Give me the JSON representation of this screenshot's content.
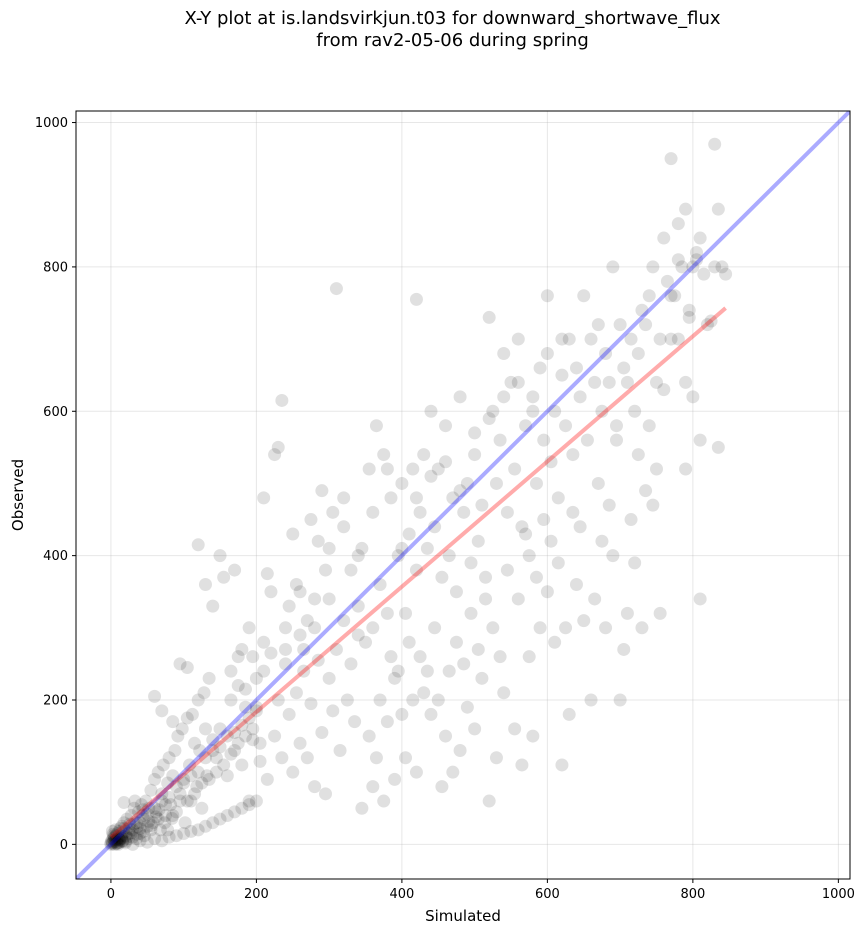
{
  "chart_data": {
    "type": "scatter",
    "title": "X-Y plot at is.landsvirkjun.t03 for downward_shortwave_flux",
    "subtitle": "from rav2-05-06 during spring",
    "xlabel": "Simulated",
    "ylabel": "Observed",
    "xlim": [
      -48,
      1016
    ],
    "ylim": [
      -48,
      1016
    ],
    "xticks": [
      0,
      200,
      400,
      600,
      800,
      1000
    ],
    "yticks": [
      0,
      200,
      400,
      600,
      800,
      1000
    ],
    "grid": true,
    "colors": {
      "points": "#000000",
      "identity_line": "#0000ff",
      "fit_line": "#ff0000"
    },
    "identity_line": {
      "x": [
        -48,
        1016
      ],
      "y": [
        -48,
        1016
      ]
    },
    "fit_line": {
      "x": [
        0,
        845
      ],
      "y": [
        10,
        743
      ]
    },
    "points": [
      [
        0,
        2
      ],
      [
        1,
        5
      ],
      [
        2,
        1
      ],
      [
        3,
        8
      ],
      [
        4,
        3
      ],
      [
        5,
        10
      ],
      [
        6,
        4
      ],
      [
        7,
        12
      ],
      [
        8,
        6
      ],
      [
        9,
        15
      ],
      [
        10,
        2
      ],
      [
        11,
        18
      ],
      [
        12,
        7
      ],
      [
        13,
        22
      ],
      [
        14,
        9
      ],
      [
        15,
        25
      ],
      [
        16,
        5
      ],
      [
        18,
        30
      ],
      [
        20,
        12
      ],
      [
        22,
        35
      ],
      [
        0,
        0
      ],
      [
        2,
        3
      ],
      [
        5,
        0
      ],
      [
        8,
        1
      ],
      [
        3,
        14
      ],
      [
        12,
        3
      ],
      [
        6,
        20
      ],
      [
        15,
        8
      ],
      [
        20,
        4
      ],
      [
        25,
        15
      ],
      [
        28,
        40
      ],
      [
        30,
        20
      ],
      [
        32,
        50
      ],
      [
        35,
        8
      ],
      [
        38,
        45
      ],
      [
        40,
        30
      ],
      [
        42,
        55
      ],
      [
        45,
        18
      ],
      [
        48,
        60
      ],
      [
        50,
        25
      ],
      [
        18,
        58
      ],
      [
        22,
        10
      ],
      [
        26,
        28
      ],
      [
        33,
        60
      ],
      [
        36,
        24
      ],
      [
        44,
        40
      ],
      [
        52,
        50
      ],
      [
        55,
        75
      ],
      [
        58,
        30
      ],
      [
        60,
        90
      ],
      [
        62,
        45
      ],
      [
        65,
        100
      ],
      [
        68,
        20
      ],
      [
        70,
        60
      ],
      [
        72,
        110
      ],
      [
        75,
        40
      ],
      [
        78,
        85
      ],
      [
        80,
        120
      ],
      [
        82,
        55
      ],
      [
        85,
        95
      ],
      [
        88,
        130
      ],
      [
        90,
        45
      ],
      [
        92,
        150
      ],
      [
        95,
        70
      ],
      [
        98,
        160
      ],
      [
        100,
        90
      ],
      [
        102,
        30
      ],
      [
        105,
        175
      ],
      [
        108,
        110
      ],
      [
        110,
        60
      ],
      [
        112,
        180
      ],
      [
        115,
        140
      ],
      [
        118,
        80
      ],
      [
        120,
        200
      ],
      [
        122,
        130
      ],
      [
        125,
        50
      ],
      [
        128,
        210
      ],
      [
        130,
        160
      ],
      [
        132,
        95
      ],
      [
        135,
        230
      ],
      [
        60,
        205
      ],
      [
        70,
        185
      ],
      [
        85,
        170
      ],
      [
        95,
        250
      ],
      [
        105,
        245
      ],
      [
        120,
        415
      ],
      [
        130,
        360
      ],
      [
        140,
        330
      ],
      [
        150,
        400
      ],
      [
        155,
        370
      ],
      [
        165,
        240
      ],
      [
        170,
        380
      ],
      [
        175,
        220
      ],
      [
        180,
        270
      ],
      [
        185,
        190
      ],
      [
        190,
        300
      ],
      [
        195,
        260
      ],
      [
        200,
        230
      ],
      [
        205,
        140
      ],
      [
        210,
        280
      ],
      [
        140,
        145
      ],
      [
        145,
        120
      ],
      [
        150,
        160
      ],
      [
        160,
        95
      ],
      [
        165,
        200
      ],
      [
        170,
        130
      ],
      [
        175,
        260
      ],
      [
        180,
        110
      ],
      [
        185,
        215
      ],
      [
        190,
        60
      ],
      [
        195,
        160
      ],
      [
        200,
        185
      ],
      [
        205,
        115
      ],
      [
        210,
        240
      ],
      [
        215,
        90
      ],
      [
        220,
        265
      ],
      [
        225,
        150
      ],
      [
        230,
        200
      ],
      [
        235,
        120
      ],
      [
        240,
        300
      ],
      [
        210,
        480
      ],
      [
        215,
        375
      ],
      [
        220,
        350
      ],
      [
        225,
        540
      ],
      [
        230,
        550
      ],
      [
        235,
        615
      ],
      [
        240,
        250
      ],
      [
        245,
        330
      ],
      [
        250,
        430
      ],
      [
        255,
        360
      ],
      [
        260,
        290
      ],
      [
        265,
        270
      ],
      [
        270,
        310
      ],
      [
        275,
        450
      ],
      [
        280,
        300
      ],
      [
        285,
        420
      ],
      [
        290,
        490
      ],
      [
        295,
        380
      ],
      [
        300,
        340
      ],
      [
        305,
        460
      ],
      [
        245,
        180
      ],
      [
        250,
        100
      ],
      [
        255,
        210
      ],
      [
        260,
        140
      ],
      [
        265,
        240
      ],
      [
        270,
        120
      ],
      [
        275,
        195
      ],
      [
        280,
        80
      ],
      [
        285,
        255
      ],
      [
        290,
        155
      ],
      [
        295,
        70
      ],
      [
        300,
        230
      ],
      [
        305,
        185
      ],
      [
        310,
        270
      ],
      [
        315,
        130
      ],
      [
        320,
        310
      ],
      [
        325,
        200
      ],
      [
        330,
        250
      ],
      [
        335,
        170
      ],
      [
        340,
        290
      ],
      [
        310,
        770
      ],
      [
        320,
        480
      ],
      [
        330,
        380
      ],
      [
        340,
        330
      ],
      [
        345,
        410
      ],
      [
        350,
        280
      ],
      [
        355,
        520
      ],
      [
        360,
        300
      ],
      [
        365,
        580
      ],
      [
        370,
        360
      ],
      [
        375,
        540
      ],
      [
        380,
        320
      ],
      [
        385,
        480
      ],
      [
        390,
        230
      ],
      [
        395,
        400
      ],
      [
        400,
        500
      ],
      [
        405,
        320
      ],
      [
        410,
        430
      ],
      [
        415,
        520
      ],
      [
        420,
        380
      ],
      [
        345,
        50
      ],
      [
        355,
        150
      ],
      [
        360,
        80
      ],
      [
        365,
        120
      ],
      [
        370,
        200
      ],
      [
        375,
        60
      ],
      [
        380,
        170
      ],
      [
        385,
        260
      ],
      [
        390,
        90
      ],
      [
        395,
        240
      ],
      [
        400,
        180
      ],
      [
        405,
        120
      ],
      [
        410,
        280
      ],
      [
        415,
        200
      ],
      [
        420,
        100
      ],
      [
        425,
        260
      ],
      [
        430,
        210
      ],
      [
        435,
        240
      ],
      [
        440,
        180
      ],
      [
        445,
        300
      ],
      [
        420,
        755
      ],
      [
        425,
        460
      ],
      [
        430,
        540
      ],
      [
        435,
        410
      ],
      [
        440,
        600
      ],
      [
        445,
        440
      ],
      [
        450,
        520
      ],
      [
        455,
        370
      ],
      [
        460,
        580
      ],
      [
        465,
        400
      ],
      [
        470,
        480
      ],
      [
        475,
        350
      ],
      [
        480,
        620
      ],
      [
        485,
        460
      ],
      [
        490,
        500
      ],
      [
        495,
        390
      ],
      [
        500,
        540
      ],
      [
        505,
        420
      ],
      [
        510,
        470
      ],
      [
        515,
        370
      ],
      [
        450,
        200
      ],
      [
        455,
        80
      ],
      [
        460,
        150
      ],
      [
        465,
        240
      ],
      [
        470,
        100
      ],
      [
        475,
        280
      ],
      [
        480,
        130
      ],
      [
        485,
        250
      ],
      [
        490,
        190
      ],
      [
        495,
        320
      ],
      [
        500,
        160
      ],
      [
        505,
        270
      ],
      [
        510,
        230
      ],
      [
        515,
        340
      ],
      [
        520,
        60
      ],
      [
        525,
        300
      ],
      [
        530,
        120
      ],
      [
        535,
        260
      ],
      [
        540,
        210
      ],
      [
        545,
        380
      ],
      [
        520,
        730
      ],
      [
        525,
        600
      ],
      [
        530,
        500
      ],
      [
        535,
        560
      ],
      [
        540,
        680
      ],
      [
        545,
        460
      ],
      [
        550,
        640
      ],
      [
        555,
        520
      ],
      [
        560,
        700
      ],
      [
        565,
        440
      ],
      [
        570,
        580
      ],
      [
        575,
        400
      ],
      [
        580,
        620
      ],
      [
        585,
        500
      ],
      [
        590,
        660
      ],
      [
        595,
        560
      ],
      [
        600,
        760
      ],
      [
        605,
        530
      ],
      [
        610,
        600
      ],
      [
        615,
        480
      ],
      [
        555,
        160
      ],
      [
        560,
        340
      ],
      [
        565,
        110
      ],
      [
        570,
        430
      ],
      [
        575,
        260
      ],
      [
        580,
        150
      ],
      [
        585,
        370
      ],
      [
        590,
        300
      ],
      [
        595,
        450
      ],
      [
        600,
        350
      ],
      [
        605,
        420
      ],
      [
        610,
        280
      ],
      [
        615,
        390
      ],
      [
        620,
        110
      ],
      [
        625,
        300
      ],
      [
        630,
        180
      ],
      [
        635,
        460
      ],
      [
        640,
        360
      ],
      [
        645,
        440
      ],
      [
        650,
        310
      ],
      [
        620,
        650
      ],
      [
        625,
        580
      ],
      [
        630,
        700
      ],
      [
        635,
        540
      ],
      [
        640,
        660
      ],
      [
        645,
        620
      ],
      [
        650,
        760
      ],
      [
        655,
        560
      ],
      [
        660,
        700
      ],
      [
        665,
        640
      ],
      [
        670,
        720
      ],
      [
        675,
        600
      ],
      [
        680,
        680
      ],
      [
        685,
        640
      ],
      [
        690,
        800
      ],
      [
        695,
        580
      ],
      [
        700,
        720
      ],
      [
        705,
        660
      ],
      [
        710,
        640
      ],
      [
        715,
        700
      ],
      [
        660,
        200
      ],
      [
        665,
        340
      ],
      [
        670,
        500
      ],
      [
        675,
        420
      ],
      [
        680,
        300
      ],
      [
        685,
        470
      ],
      [
        690,
        400
      ],
      [
        695,
        560
      ],
      [
        700,
        200
      ],
      [
        705,
        270
      ],
      [
        710,
        320
      ],
      [
        715,
        450
      ],
      [
        720,
        390
      ],
      [
        725,
        540
      ],
      [
        730,
        300
      ],
      [
        735,
        490
      ],
      [
        740,
        580
      ],
      [
        745,
        470
      ],
      [
        750,
        520
      ],
      [
        755,
        320
      ],
      [
        720,
        600
      ],
      [
        725,
        680
      ],
      [
        730,
        740
      ],
      [
        735,
        720
      ],
      [
        740,
        760
      ],
      [
        745,
        800
      ],
      [
        750,
        640
      ],
      [
        755,
        700
      ],
      [
        760,
        840
      ],
      [
        765,
        780
      ],
      [
        770,
        950
      ],
      [
        775,
        760
      ],
      [
        780,
        860
      ],
      [
        785,
        800
      ],
      [
        790,
        880
      ],
      [
        795,
        740
      ],
      [
        800,
        800
      ],
      [
        805,
        820
      ],
      [
        810,
        840
      ],
      [
        815,
        790
      ],
      [
        770,
        760
      ],
      [
        780,
        700
      ],
      [
        790,
        640
      ],
      [
        800,
        620
      ],
      [
        810,
        560
      ],
      [
        820,
        720
      ],
      [
        830,
        970
      ],
      [
        835,
        880
      ],
      [
        840,
        800
      ],
      [
        845,
        790
      ],
      [
        790,
        520
      ],
      [
        760,
        630
      ],
      [
        770,
        700
      ],
      [
        780,
        810
      ],
      [
        810,
        340
      ],
      [
        825,
        725
      ],
      [
        835,
        550
      ],
      [
        830,
        800
      ],
      [
        795,
        730
      ],
      [
        805,
        810
      ],
      [
        5,
        6
      ],
      [
        10,
        8
      ],
      [
        15,
        12
      ],
      [
        20,
        18
      ],
      [
        25,
        22
      ],
      [
        30,
        10
      ],
      [
        35,
        30
      ],
      [
        40,
        15
      ],
      [
        45,
        35
      ],
      [
        50,
        42
      ],
      [
        55,
        20
      ],
      [
        60,
        50
      ],
      [
        65,
        35
      ],
      [
        70,
        70
      ],
      [
        75,
        55
      ],
      [
        80,
        65
      ],
      [
        85,
        40
      ],
      [
        90,
        80
      ],
      [
        95,
        60
      ],
      [
        100,
        85
      ],
      [
        105,
        60
      ],
      [
        110,
        95
      ],
      [
        115,
        70
      ],
      [
        120,
        100
      ],
      [
        125,
        85
      ],
      [
        130,
        120
      ],
      [
        135,
        90
      ],
      [
        140,
        130
      ],
      [
        145,
        100
      ],
      [
        150,
        135
      ],
      [
        155,
        110
      ],
      [
        160,
        150
      ],
      [
        165,
        125
      ],
      [
        170,
        155
      ],
      [
        175,
        140
      ],
      [
        180,
        165
      ],
      [
        185,
        150
      ],
      [
        190,
        175
      ],
      [
        195,
        145
      ],
      [
        200,
        190
      ],
      [
        10,
        0
      ],
      [
        20,
        2
      ],
      [
        30,
        0
      ],
      [
        40,
        5
      ],
      [
        50,
        3
      ],
      [
        60,
        8
      ],
      [
        70,
        5
      ],
      [
        80,
        10
      ],
      [
        90,
        12
      ],
      [
        100,
        15
      ],
      [
        110,
        18
      ],
      [
        120,
        20
      ],
      [
        130,
        25
      ],
      [
        140,
        30
      ],
      [
        150,
        35
      ],
      [
        160,
        40
      ],
      [
        170,
        45
      ],
      [
        180,
        50
      ],
      [
        190,
        55
      ],
      [
        200,
        60
      ],
      [
        240,
        270
      ],
      [
        260,
        350
      ],
      [
        280,
        340
      ],
      [
        300,
        410
      ],
      [
        320,
        440
      ],
      [
        340,
        400
      ],
      [
        360,
        460
      ],
      [
        380,
        520
      ],
      [
        400,
        410
      ],
      [
        420,
        480
      ],
      [
        440,
        510
      ],
      [
        460,
        530
      ],
      [
        480,
        490
      ],
      [
        500,
        570
      ],
      [
        520,
        590
      ],
      [
        540,
        620
      ],
      [
        560,
        640
      ],
      [
        580,
        600
      ],
      [
        600,
        680
      ],
      [
        620,
        700
      ],
      [
        8,
        2
      ],
      [
        12,
        6
      ],
      [
        16,
        4
      ],
      [
        4,
        12
      ],
      [
        2,
        18
      ],
      [
        18,
        22
      ],
      [
        24,
        8
      ],
      [
        28,
        16
      ],
      [
        32,
        28
      ],
      [
        36,
        14
      ],
      [
        40,
        22
      ],
      [
        44,
        48
      ],
      [
        46,
        12
      ],
      [
        52,
        32
      ],
      [
        56,
        26
      ],
      [
        62,
        38
      ],
      [
        66,
        48
      ],
      [
        74,
        30
      ],
      [
        78,
        20
      ],
      [
        84,
        36
      ]
    ]
  }
}
